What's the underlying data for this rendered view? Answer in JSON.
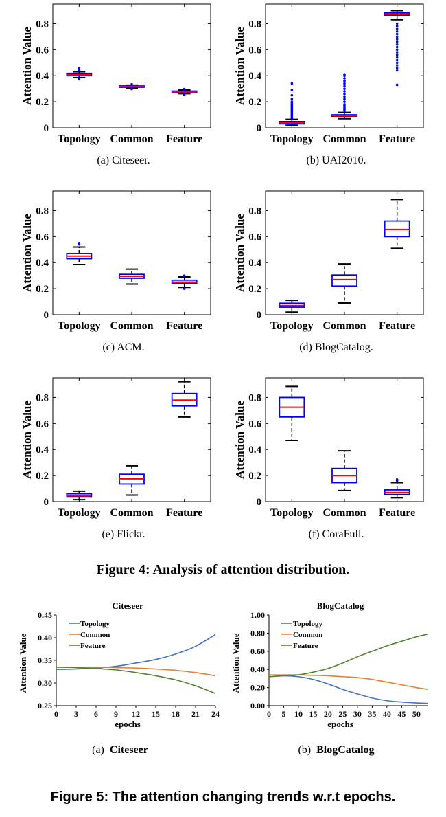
{
  "figure4": {
    "caption": "Figure 4: Analysis of attention distribution.",
    "panels": [
      {
        "caption": "(a)  Citeseer."
      },
      {
        "caption": "(b)  UAI2010."
      },
      {
        "caption": "(c)  ACM."
      },
      {
        "caption": "(d)  BlogCatalog."
      },
      {
        "caption": "(e)  Flickr."
      },
      {
        "caption": "(f)  CoraFull."
      }
    ]
  },
  "figure5": {
    "caption": "Figure 5: The attention changing trends w.r.t epochs.",
    "panels": [
      {
        "caption_prefix": "(a)",
        "caption_name": "Citeseer"
      },
      {
        "caption_prefix": "(b)",
        "caption_name": "BlogCatalog"
      }
    ]
  },
  "colors": {
    "box_edge": "#0000ff",
    "median": "#ff0000",
    "whisker": "#000000",
    "outlier": "#0000ff",
    "topology": "#4472c4",
    "common": "#ed7d31",
    "feature": "#548235"
  },
  "chart_data": [
    {
      "type": "box",
      "ylabel": "Attention Value",
      "categories": [
        "Topology",
        "Common",
        "Feature"
      ],
      "ylim": [
        0,
        0.95
      ],
      "yticks": [
        0,
        0.2,
        0.4,
        0.6,
        0.8
      ],
      "ytick_labels": [
        "0",
        "0.2",
        "0.4",
        "0.6",
        "0.8"
      ],
      "boxes": [
        {
          "min": 0.385,
          "q1": 0.4,
          "median": 0.41,
          "q3": 0.418,
          "max": 0.43,
          "outliers": [
            0.375,
            0.44,
            0.45,
            0.46
          ]
        },
        {
          "min": 0.305,
          "q1": 0.312,
          "median": 0.318,
          "q3": 0.322,
          "max": 0.328,
          "outliers": [
            0.298,
            0.334
          ]
        },
        {
          "min": 0.262,
          "q1": 0.27,
          "median": 0.276,
          "q3": 0.282,
          "max": 0.29,
          "outliers": [
            0.252,
            0.298
          ]
        }
      ]
    },
    {
      "type": "box",
      "ylabel": "Attention Value",
      "categories": [
        "Topology",
        "Common",
        "Feature"
      ],
      "ylim": [
        0,
        0.95
      ],
      "yticks": [
        0,
        0.2,
        0.4,
        0.6,
        0.8
      ],
      "ytick_labels": [
        "0",
        "0.2",
        "0.4",
        "0.6",
        "0.8"
      ],
      "boxes": [
        {
          "min": 0.02,
          "q1": 0.03,
          "median": 0.038,
          "q3": 0.048,
          "max": 0.065,
          "outliers": [
            0.07,
            0.08,
            0.09,
            0.1,
            0.11,
            0.12,
            0.13,
            0.14,
            0.15,
            0.16,
            0.17,
            0.18,
            0.19,
            0.2,
            0.22,
            0.25,
            0.29,
            0.34
          ]
        },
        {
          "min": 0.07,
          "q1": 0.085,
          "median": 0.093,
          "q3": 0.1,
          "max": 0.118,
          "outliers": [
            0.13,
            0.14,
            0.15,
            0.16,
            0.17,
            0.18,
            0.2,
            0.22,
            0.24,
            0.26,
            0.28,
            0.3,
            0.32,
            0.34,
            0.36,
            0.38,
            0.4,
            0.41
          ]
        },
        {
          "min": 0.83,
          "q1": 0.865,
          "median": 0.875,
          "q3": 0.883,
          "max": 0.9,
          "outliers": [
            0.8,
            0.78,
            0.76,
            0.74,
            0.72,
            0.7,
            0.68,
            0.66,
            0.64,
            0.62,
            0.6,
            0.58,
            0.56,
            0.54,
            0.52,
            0.5,
            0.48,
            0.46,
            0.44,
            0.33
          ]
        }
      ]
    },
    {
      "type": "box",
      "ylabel": "Attention Value",
      "categories": [
        "Topology",
        "Common",
        "Feature"
      ],
      "ylim": [
        0,
        0.95
      ],
      "yticks": [
        0,
        0.2,
        0.4,
        0.6,
        0.8
      ],
      "ytick_labels": [
        "0",
        "0.2",
        "0.4",
        "0.6",
        "0.8"
      ],
      "boxes": [
        {
          "min": 0.385,
          "q1": 0.43,
          "median": 0.45,
          "q3": 0.47,
          "max": 0.52,
          "outliers": [
            0.54,
            0.55
          ]
        },
        {
          "min": 0.235,
          "q1": 0.28,
          "median": 0.295,
          "q3": 0.31,
          "max": 0.35,
          "outliers": []
        },
        {
          "min": 0.21,
          "q1": 0.24,
          "median": 0.25,
          "q3": 0.265,
          "max": 0.29,
          "outliers": [
            0.2,
            0.3
          ]
        }
      ]
    },
    {
      "type": "box",
      "ylabel": "Attention Value",
      "categories": [
        "Topology",
        "Common",
        "Feature"
      ],
      "ylim": [
        0,
        0.95
      ],
      "yticks": [
        0,
        0.2,
        0.4,
        0.6,
        0.8
      ],
      "ytick_labels": [
        "0",
        "0.2",
        "0.4",
        "0.6",
        "0.8"
      ],
      "boxes": [
        {
          "min": 0.02,
          "q1": 0.058,
          "median": 0.07,
          "q3": 0.088,
          "max": 0.11,
          "outliers": []
        },
        {
          "min": 0.09,
          "q1": 0.22,
          "median": 0.27,
          "q3": 0.305,
          "max": 0.39,
          "outliers": []
        },
        {
          "min": 0.51,
          "q1": 0.6,
          "median": 0.655,
          "q3": 0.72,
          "max": 0.885,
          "outliers": []
        }
      ]
    },
    {
      "type": "box",
      "ylabel": "Attention Value",
      "categories": [
        "Topology",
        "Common",
        "Feature"
      ],
      "ylim": [
        0,
        0.95
      ],
      "yticks": [
        0,
        0.2,
        0.4,
        0.6,
        0.8
      ],
      "ytick_labels": [
        "0",
        "0.2",
        "0.4",
        "0.6",
        "0.8"
      ],
      "boxes": [
        {
          "min": 0.015,
          "q1": 0.035,
          "median": 0.045,
          "q3": 0.06,
          "max": 0.08,
          "outliers": []
        },
        {
          "min": 0.05,
          "q1": 0.135,
          "median": 0.175,
          "q3": 0.21,
          "max": 0.275,
          "outliers": []
        },
        {
          "min": 0.65,
          "q1": 0.735,
          "median": 0.78,
          "q3": 0.83,
          "max": 0.92,
          "outliers": []
        }
      ]
    },
    {
      "type": "box",
      "ylabel": "Attention Value",
      "categories": [
        "Topology",
        "Common",
        "Feature"
      ],
      "ylim": [
        0,
        0.95
      ],
      "yticks": [
        0,
        0.2,
        0.4,
        0.6,
        0.8
      ],
      "ytick_labels": [
        "0",
        "0.2",
        "0.4",
        "0.6",
        "0.8"
      ],
      "boxes": [
        {
          "min": 0.47,
          "q1": 0.65,
          "median": 0.725,
          "q3": 0.8,
          "max": 0.885,
          "outliers": []
        },
        {
          "min": 0.085,
          "q1": 0.145,
          "median": 0.2,
          "q3": 0.255,
          "max": 0.39,
          "outliers": []
        },
        {
          "min": 0.03,
          "q1": 0.055,
          "median": 0.07,
          "q3": 0.09,
          "max": 0.145,
          "outliers": [
            0.16,
            0.17
          ]
        }
      ]
    },
    {
      "type": "line",
      "title": "Citeseer",
      "xlabel": "epochs",
      "ylabel": "Attention Value",
      "xlim": [
        0,
        24
      ],
      "ylim": [
        0.25,
        0.45
      ],
      "xticks": [
        0,
        3,
        6,
        9,
        12,
        15,
        18,
        21,
        24
      ],
      "yticks": [
        0.25,
        0.3,
        0.35,
        0.4,
        0.45
      ],
      "ytick_labels": [
        "0.25",
        "0.30",
        "0.35",
        "0.40",
        "0.45"
      ],
      "legend_position": "top-left",
      "x": [
        0,
        3,
        6,
        9,
        12,
        15,
        18,
        21,
        24
      ],
      "series": [
        {
          "name": "Topology",
          "color": "#4472c4",
          "values": [
            0.33,
            0.331,
            0.333,
            0.337,
            0.344,
            0.352,
            0.364,
            0.381,
            0.407
          ]
        },
        {
          "name": "Common",
          "color": "#ed7d31",
          "values": [
            0.335,
            0.335,
            0.335,
            0.334,
            0.333,
            0.331,
            0.328,
            0.323,
            0.316
          ]
        },
        {
          "name": "Feature",
          "color": "#548235",
          "values": [
            0.335,
            0.334,
            0.332,
            0.329,
            0.323,
            0.316,
            0.307,
            0.294,
            0.277
          ]
        }
      ]
    },
    {
      "type": "line",
      "title": "BlogCatalog",
      "xlabel": "epochs",
      "ylabel": "Attention Value",
      "xlim": [
        0,
        54
      ],
      "ylim": [
        0,
        1.0
      ],
      "xticks": [
        0,
        5,
        10,
        15,
        20,
        25,
        30,
        35,
        40,
        45,
        50
      ],
      "yticks": [
        0,
        0.2,
        0.4,
        0.6,
        0.8,
        1.0
      ],
      "ytick_labels": [
        "0.00",
        "0.20",
        "0.40",
        "0.60",
        "0.80",
        "1.00"
      ],
      "legend_position": "top-left",
      "x": [
        0,
        5,
        10,
        15,
        20,
        25,
        30,
        35,
        40,
        45,
        50,
        54
      ],
      "series": [
        {
          "name": "Topology",
          "color": "#4472c4",
          "values": [
            0.32,
            0.33,
            0.32,
            0.29,
            0.24,
            0.18,
            0.13,
            0.085,
            0.055,
            0.04,
            0.03,
            0.025
          ]
        },
        {
          "name": "Common",
          "color": "#ed7d31",
          "values": [
            0.34,
            0.34,
            0.34,
            0.335,
            0.33,
            0.32,
            0.31,
            0.29,
            0.26,
            0.23,
            0.2,
            0.18
          ]
        },
        {
          "name": "Feature",
          "color": "#548235",
          "values": [
            0.32,
            0.33,
            0.34,
            0.37,
            0.41,
            0.47,
            0.54,
            0.6,
            0.66,
            0.71,
            0.76,
            0.79
          ]
        }
      ]
    }
  ]
}
